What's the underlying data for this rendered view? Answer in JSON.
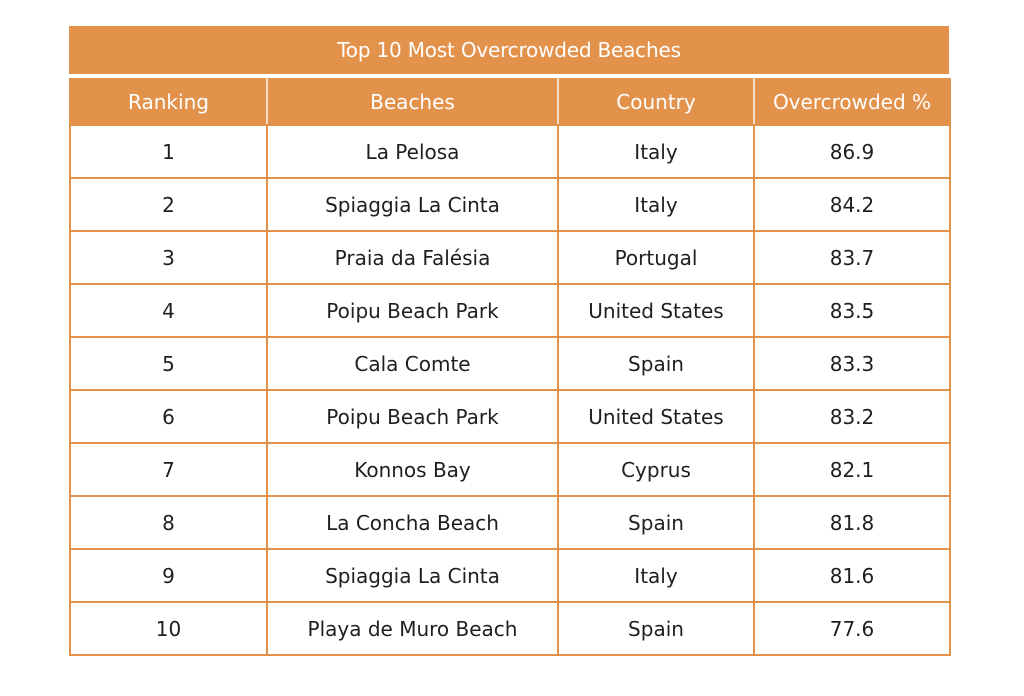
{
  "colors": {
    "accent": "#e2924a",
    "header_text": "#ffffff",
    "cell_text": "#1f1f1f"
  },
  "chart_data": {
    "type": "table",
    "title": "Top 10 Most Overcrowded Beaches",
    "columns": [
      "Ranking",
      "Beaches",
      "Country",
      "Overcrowded %"
    ],
    "rows": [
      [
        "1",
        "La Pelosa",
        "Italy",
        "86.9"
      ],
      [
        "2",
        "Spiaggia La Cinta",
        "Italy",
        "84.2"
      ],
      [
        "3",
        "Praia da Falésia",
        "Portugal",
        "83.7"
      ],
      [
        "4",
        "Poipu Beach Park",
        "United States",
        "83.5"
      ],
      [
        "5",
        "Cala Comte",
        "Spain",
        "83.3"
      ],
      [
        "6",
        "Poipu Beach Park",
        "United States",
        "83.2"
      ],
      [
        "7",
        "Konnos Bay",
        "Cyprus",
        "82.1"
      ],
      [
        "8",
        "La Concha Beach",
        "Spain",
        "81.8"
      ],
      [
        "9",
        "Spiaggia La Cinta",
        "Italy",
        "81.6"
      ],
      [
        "10",
        "Playa de Muro Beach",
        "Spain",
        "77.6"
      ]
    ]
  }
}
